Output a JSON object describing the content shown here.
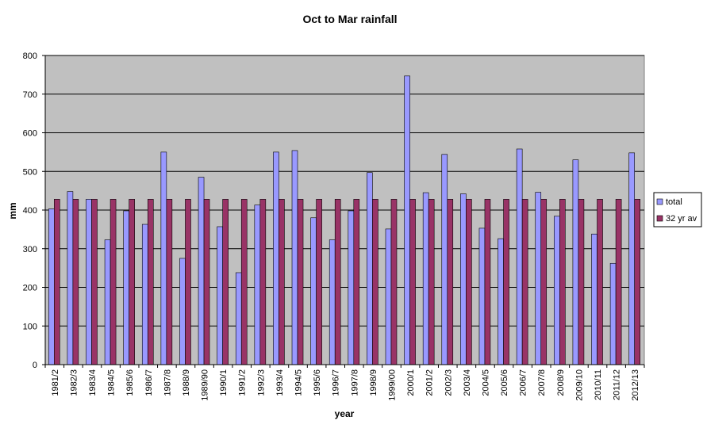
{
  "chart_data": {
    "type": "bar",
    "title": "Oct to Mar rainfall",
    "xlabel": "year",
    "ylabel": "mm",
    "ylim": [
      0,
      800
    ],
    "yticks": [
      0,
      100,
      200,
      300,
      400,
      500,
      600,
      700,
      800
    ],
    "grid": true,
    "legend_position": "right",
    "background_color": "#c0c0c0",
    "categories": [
      "1981/2",
      "1982/3",
      "1983/4",
      "1984/5",
      "1985/6",
      "1986/7",
      "1987/8",
      "1988/9",
      "1989/90",
      "1990/1",
      "1991/2",
      "1992/3",
      "1993/4",
      "1994/5",
      "1995/6",
      "1996/7",
      "1997/8",
      "1998/9",
      "1999/00",
      "2000/1",
      "2001/2",
      "2002/3",
      "2003/4",
      "2004/5",
      "2005/6",
      "2006/7",
      "2007/8",
      "2008/9",
      "2009/10",
      "2010/11",
      "2011/12",
      "2012/13"
    ],
    "series": [
      {
        "name": "total",
        "color": "#9999ff",
        "values": [
          403,
          448,
          428,
          323,
          398,
          363,
          550,
          275,
          485,
          357,
          238,
          413,
          550,
          554,
          380,
          323,
          398,
          497,
          351,
          747,
          445,
          544,
          442,
          353,
          326,
          558,
          446,
          384,
          530,
          338,
          262,
          548
        ]
      },
      {
        "name": "32 yr av",
        "color": "#993366",
        "values": [
          428,
          428,
          428,
          428,
          428,
          428,
          428,
          428,
          428,
          428,
          428,
          428,
          428,
          428,
          428,
          428,
          428,
          428,
          428,
          428,
          428,
          428,
          428,
          428,
          428,
          428,
          428,
          428,
          428,
          428,
          428,
          428
        ]
      }
    ]
  }
}
